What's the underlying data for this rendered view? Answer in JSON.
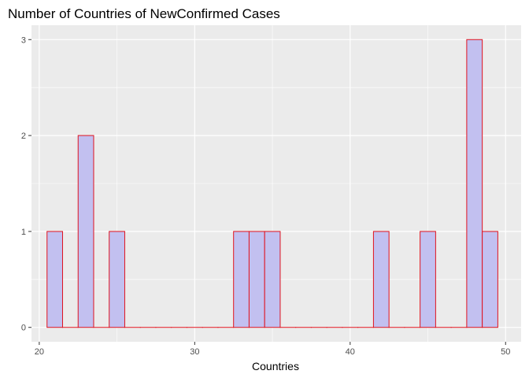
{
  "chart_data": {
    "type": "bar",
    "title": "Number of Countries of NewConfirmed Cases",
    "xlabel": "Countries",
    "ylabel": "",
    "xlim": [
      19.5,
      51.0
    ],
    "ylim": [
      -0.15,
      3.15
    ],
    "x_ticks": [
      20,
      30,
      40,
      50
    ],
    "y_ticks": [
      0,
      1,
      2,
      3
    ],
    "bin_width": 1,
    "bins": [
      {
        "x": 21,
        "count": 1
      },
      {
        "x": 22,
        "count": 0
      },
      {
        "x": 23,
        "count": 2
      },
      {
        "x": 24,
        "count": 0
      },
      {
        "x": 25,
        "count": 1
      },
      {
        "x": 26,
        "count": 0
      },
      {
        "x": 27,
        "count": 0
      },
      {
        "x": 28,
        "count": 0
      },
      {
        "x": 29,
        "count": 0
      },
      {
        "x": 30,
        "count": 0
      },
      {
        "x": 31,
        "count": 0
      },
      {
        "x": 32,
        "count": 0
      },
      {
        "x": 33,
        "count": 1
      },
      {
        "x": 34,
        "count": 1
      },
      {
        "x": 35,
        "count": 1
      },
      {
        "x": 36,
        "count": 0
      },
      {
        "x": 37,
        "count": 0
      },
      {
        "x": 38,
        "count": 0
      },
      {
        "x": 39,
        "count": 0
      },
      {
        "x": 40,
        "count": 0
      },
      {
        "x": 41,
        "count": 0
      },
      {
        "x": 42,
        "count": 1
      },
      {
        "x": 43,
        "count": 0
      },
      {
        "x": 44,
        "count": 0
      },
      {
        "x": 45,
        "count": 1
      },
      {
        "x": 46,
        "count": 0
      },
      {
        "x": 47,
        "count": 0
      },
      {
        "x": 48,
        "count": 3
      },
      {
        "x": 49,
        "count": 1
      }
    ],
    "bar_fill": "#c2c0f0",
    "bar_stroke": "#e0131f",
    "panel_background": "#ebebeb",
    "grid": true,
    "grid_color": "#ffffff"
  }
}
